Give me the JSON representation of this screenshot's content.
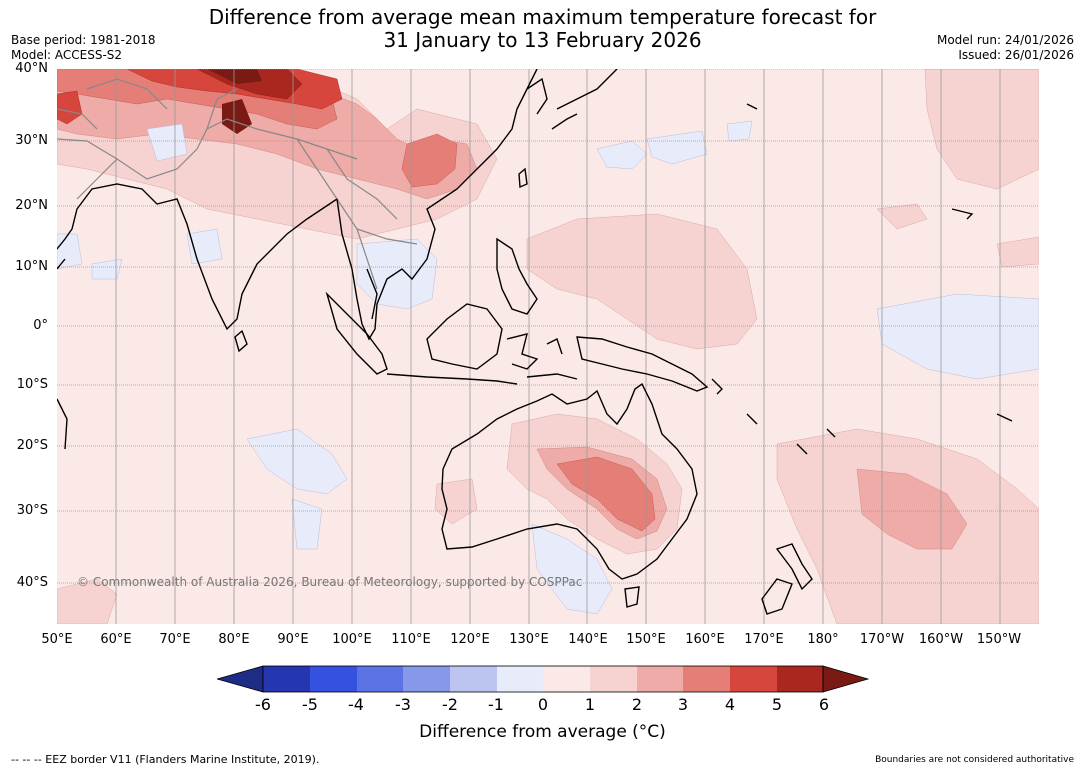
{
  "header": {
    "title_line1": "Difference from average mean maximum temperature forecast for",
    "title_line2": "31 January to 13 February 2026",
    "base_period": "Base period: 1981-2018",
    "model": "Model: ACCESS-S2",
    "model_run": "Model run: 24/01/2026",
    "issued": "Issued: 26/01/2026"
  },
  "map": {
    "lat_labels": [
      "40°N",
      "30°N",
      "20°N",
      "10°N",
      "0°",
      "10°S",
      "20°S",
      "30°S",
      "40°S"
    ],
    "lon_labels": [
      "50°E",
      "60°E",
      "70°E",
      "80°E",
      "90°E",
      "100°E",
      "110°E",
      "120°E",
      "130°E",
      "140°E",
      "150°E",
      "160°E",
      "170°E",
      "180°",
      "170°W",
      "160°W",
      "150°W"
    ],
    "copyright": "© Commonwealth of Australia 2026, Bureau of Meteorology, supported by COSPPac",
    "background_color": "#fbe9e7"
  },
  "colorbar": {
    "ticks": [
      "-6",
      "-5",
      "-4",
      "-3",
      "-2",
      "-1",
      "0",
      "1",
      "2",
      "3",
      "4",
      "5",
      "6"
    ],
    "colors": [
      "#1e2c85",
      "#2436b0",
      "#3451e0",
      "#5b72e4",
      "#8797ea",
      "#bcc4f2",
      "#e8ebfa",
      "#fbe9e7",
      "#f6d3d1",
      "#eeaba7",
      "#e47e77",
      "#d6463c",
      "#aa2720",
      "#7a1a14"
    ],
    "title": "Difference from average (°C)"
  },
  "footer": {
    "eez": "--  --  -- EEZ border V11 (Flanders Marine Institute, 2019).",
    "boundaries": "Boundaries are not considered authoritative"
  }
}
